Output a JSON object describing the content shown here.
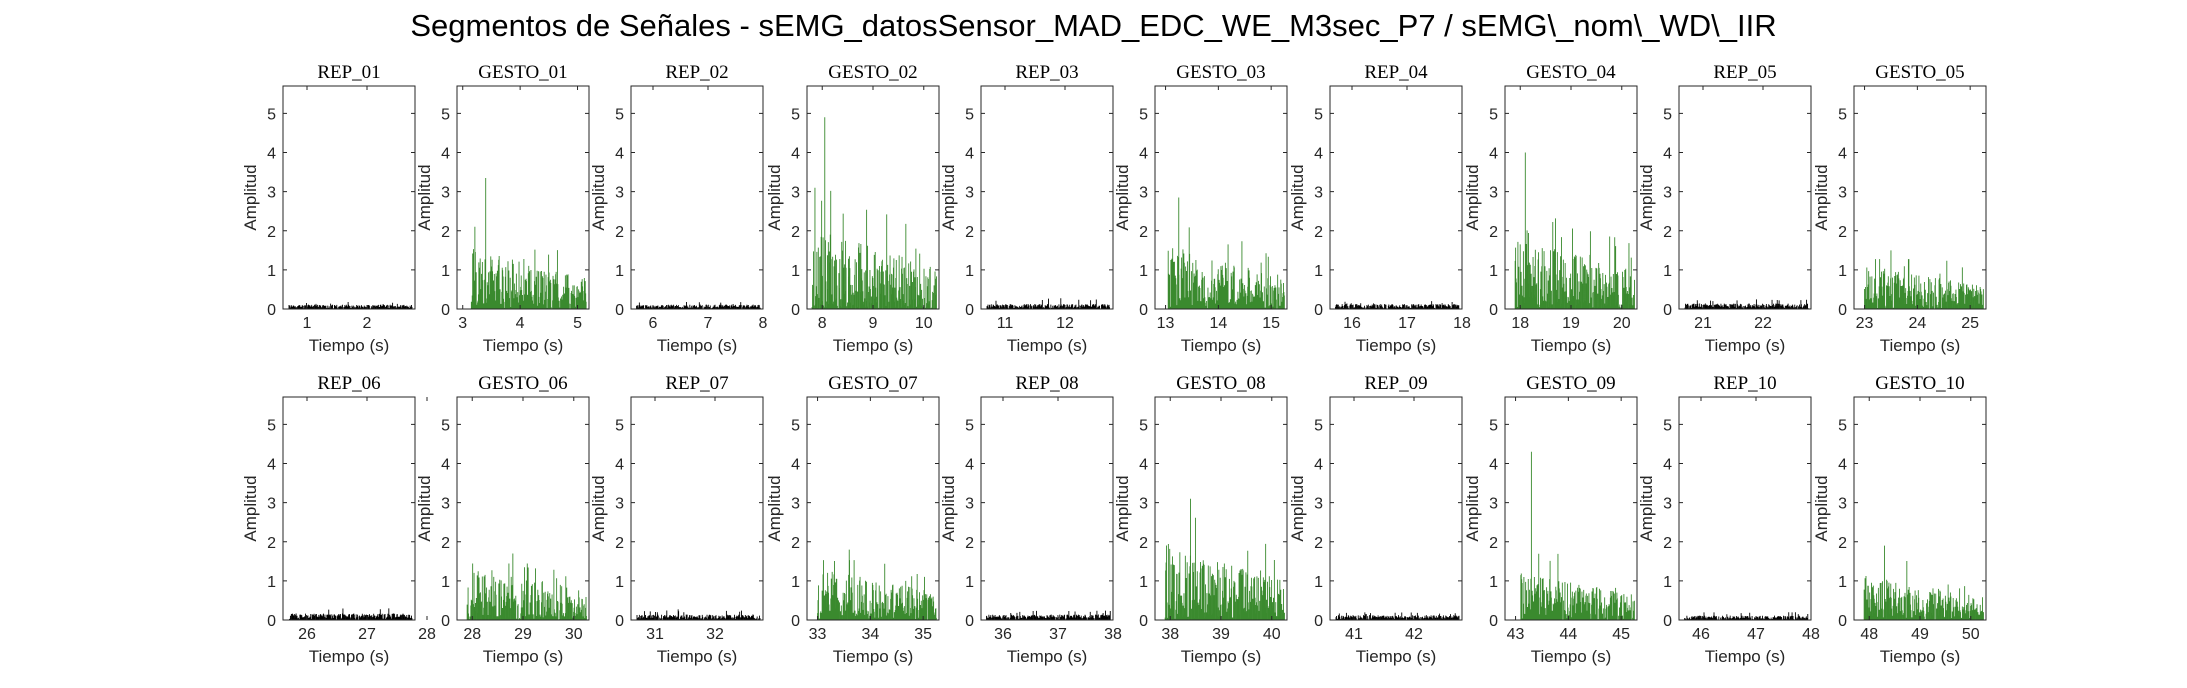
{
  "figure": {
    "title": "Segmentos de Señales - sEMG_datosSensor_MAD_EDC_WE_M3sec_P7 / sEMG\\_nom\\_WD\\_IIR"
  },
  "colors": {
    "rep": "#000000",
    "gesto": "#3a8a2e",
    "axis": "#262626"
  },
  "chart_data": [
    {
      "type": "area",
      "title": "REP_01",
      "xlabel": "Tiempo (s)",
      "ylabel": "Amplitud",
      "xlim": [
        0.6,
        2.8
      ],
      "ylim": [
        0,
        5.7
      ],
      "xticks": [
        1,
        2
      ],
      "yticks": [
        0,
        1,
        2,
        3,
        4,
        5
      ],
      "kind": "rep",
      "seed": 11,
      "level": 0.08,
      "peak": 0.18
    },
    {
      "type": "area",
      "title": "GESTO_01",
      "xlabel": "Tiempo (s)",
      "ylabel": "Amplitud",
      "xlim": [
        2.9,
        5.2
      ],
      "ylim": [
        0,
        5.7
      ],
      "xticks": [
        3,
        4,
        5
      ],
      "yticks": [
        0,
        1,
        2,
        3,
        4,
        5
      ],
      "kind": "gesto",
      "seed": 21,
      "onset": 3.15,
      "level": 0.75,
      "peak": 3.35,
      "peak_x": 3.4
    },
    {
      "type": "area",
      "title": "REP_02",
      "xlabel": "Tiempo (s)",
      "ylabel": "Amplitud",
      "xlim": [
        5.6,
        8.0
      ],
      "ylim": [
        0,
        5.7
      ],
      "xticks": [
        6,
        7,
        8
      ],
      "yticks": [
        0,
        1,
        2,
        3,
        4,
        5
      ],
      "kind": "rep",
      "seed": 12,
      "level": 0.08,
      "peak": 0.18
    },
    {
      "type": "area",
      "title": "GESTO_02",
      "xlabel": "Tiempo (s)",
      "ylabel": "Amplitud",
      "xlim": [
        7.7,
        10.3
      ],
      "ylim": [
        0,
        5.7
      ],
      "xticks": [
        8,
        9,
        10
      ],
      "yticks": [
        0,
        1,
        2,
        3,
        4,
        5
      ],
      "kind": "gesto",
      "seed": 22,
      "onset": 7.8,
      "level": 1.0,
      "peak": 4.9,
      "peak_x": 8.05
    },
    {
      "type": "area",
      "title": "REP_03",
      "xlabel": "Tiempo (s)",
      "ylabel": "Amplitud",
      "xlim": [
        10.6,
        12.8
      ],
      "ylim": [
        0,
        5.7
      ],
      "xticks": [
        11,
        12
      ],
      "yticks": [
        0,
        1,
        2,
        3,
        4,
        5
      ],
      "kind": "rep",
      "seed": 13,
      "level": 0.09,
      "peak": 0.3
    },
    {
      "type": "area",
      "title": "GESTO_03",
      "xlabel": "Tiempo (s)",
      "ylabel": "Amplitud",
      "xlim": [
        12.8,
        15.3
      ],
      "ylim": [
        0,
        5.7
      ],
      "xticks": [
        13,
        14,
        15
      ],
      "yticks": [
        0,
        1,
        2,
        3,
        4,
        5
      ],
      "kind": "gesto",
      "seed": 23,
      "onset": 13.05,
      "level": 0.8,
      "peak": 2.85,
      "peak_x": 13.25
    },
    {
      "type": "area",
      "title": "REP_04",
      "xlabel": "Tiempo (s)",
      "ylabel": "Amplitud",
      "xlim": [
        15.6,
        18.0
      ],
      "ylim": [
        0,
        5.7
      ],
      "xticks": [
        16,
        17,
        18
      ],
      "yticks": [
        0,
        1,
        2,
        3,
        4,
        5
      ],
      "kind": "rep",
      "seed": 14,
      "level": 0.09,
      "peak": 0.2
    },
    {
      "type": "area",
      "title": "GESTO_04",
      "xlabel": "Tiempo (s)",
      "ylabel": "Amplitud",
      "xlim": [
        17.7,
        20.3
      ],
      "ylim": [
        0,
        5.7
      ],
      "xticks": [
        18,
        19,
        20
      ],
      "yticks": [
        0,
        1,
        2,
        3,
        4,
        5
      ],
      "kind": "gesto",
      "seed": 24,
      "onset": 17.9,
      "level": 0.9,
      "peak": 4.0,
      "peak_x": 18.1
    },
    {
      "type": "area",
      "title": "REP_05",
      "xlabel": "Tiempo (s)",
      "ylabel": "Amplitud",
      "xlim": [
        20.6,
        22.8
      ],
      "ylim": [
        0,
        5.7
      ],
      "xticks": [
        21,
        22
      ],
      "yticks": [
        0,
        1,
        2,
        3,
        4,
        5
      ],
      "kind": "rep",
      "seed": 15,
      "level": 0.1,
      "peak": 0.25
    },
    {
      "type": "area",
      "title": "GESTO_05",
      "xlabel": "Tiempo (s)",
      "ylabel": "Amplitud",
      "xlim": [
        22.8,
        25.3
      ],
      "ylim": [
        0,
        5.7
      ],
      "xticks": [
        23,
        24,
        25
      ],
      "yticks": [
        0,
        1,
        2,
        3,
        4,
        5
      ],
      "kind": "gesto",
      "seed": 25,
      "onset": 23.0,
      "level": 0.55,
      "peak": 1.5,
      "peak_x": 23.5
    },
    {
      "type": "area",
      "title": "REP_06",
      "xlabel": "Tiempo (s)",
      "ylabel": "Amplitud",
      "xlim": [
        25.6,
        27.8
      ],
      "ylim": [
        0,
        5.7
      ],
      "xticks": [
        26,
        27,
        28
      ],
      "yticks": [
        0,
        1,
        2,
        3,
        4,
        5
      ],
      "kind": "rep",
      "seed": 16,
      "level": 0.12,
      "peak": 0.3
    },
    {
      "type": "area",
      "title": "GESTO_06",
      "xlabel": "Tiempo (s)",
      "ylabel": "Amplitud",
      "xlim": [
        27.7,
        30.3
      ],
      "ylim": [
        0,
        5.7
      ],
      "xticks": [
        28,
        29,
        30
      ],
      "yticks": [
        0,
        1,
        2,
        3,
        4,
        5
      ],
      "kind": "gesto",
      "seed": 26,
      "onset": 27.9,
      "level": 0.7,
      "peak": 1.7,
      "peak_x": 28.8
    },
    {
      "type": "area",
      "title": "REP_07",
      "xlabel": "Tiempo (s)",
      "ylabel": "Amplitud",
      "xlim": [
        30.6,
        32.8
      ],
      "ylim": [
        0,
        5.7
      ],
      "xticks": [
        31,
        32
      ],
      "yticks": [
        0,
        1,
        2,
        3,
        4,
        5
      ],
      "kind": "rep",
      "seed": 17,
      "level": 0.1,
      "peak": 0.28
    },
    {
      "type": "area",
      "title": "GESTO_07",
      "xlabel": "Tiempo (s)",
      "ylabel": "Amplitud",
      "xlim": [
        32.8,
        35.3
      ],
      "ylim": [
        0,
        5.7
      ],
      "xticks": [
        33,
        34,
        35
      ],
      "yticks": [
        0,
        1,
        2,
        3,
        4,
        5
      ],
      "kind": "gesto",
      "seed": 27,
      "onset": 33.0,
      "level": 0.65,
      "peak": 1.8,
      "peak_x": 33.6
    },
    {
      "type": "area",
      "title": "REP_08",
      "xlabel": "Tiempo (s)",
      "ylabel": "Amplitud",
      "xlim": [
        35.6,
        38.0
      ],
      "ylim": [
        0,
        5.7
      ],
      "xticks": [
        36,
        37,
        38
      ],
      "yticks": [
        0,
        1,
        2,
        3,
        4,
        5
      ],
      "kind": "rep",
      "seed": 18,
      "level": 0.1,
      "peak": 0.25
    },
    {
      "type": "area",
      "title": "GESTO_08",
      "xlabel": "Tiempo (s)",
      "ylabel": "Amplitud",
      "xlim": [
        37.7,
        40.3
      ],
      "ylim": [
        0,
        5.7
      ],
      "xticks": [
        38,
        39,
        40
      ],
      "yticks": [
        0,
        1,
        2,
        3,
        4,
        5
      ],
      "kind": "gesto",
      "seed": 28,
      "onset": 37.9,
      "level": 0.95,
      "peak": 3.1,
      "peak_x": 38.4
    },
    {
      "type": "area",
      "title": "REP_09",
      "xlabel": "Tiempo (s)",
      "ylabel": "Amplitud",
      "xlim": [
        40.6,
        42.8
      ],
      "ylim": [
        0,
        5.7
      ],
      "xticks": [
        41,
        42
      ],
      "yticks": [
        0,
        1,
        2,
        3,
        4,
        5
      ],
      "kind": "rep",
      "seed": 19,
      "level": 0.09,
      "peak": 0.2
    },
    {
      "type": "area",
      "title": "GESTO_09",
      "xlabel": "Tiempo (s)",
      "ylabel": "Amplitud",
      "xlim": [
        42.8,
        45.3
      ],
      "ylim": [
        0,
        5.7
      ],
      "xticks": [
        43,
        44,
        45
      ],
      "yticks": [
        0,
        1,
        2,
        3,
        4,
        5
      ],
      "kind": "gesto",
      "seed": 29,
      "onset": 43.1,
      "level": 0.6,
      "peak": 4.3,
      "peak_x": 43.3
    },
    {
      "type": "area",
      "title": "REP_10",
      "xlabel": "Tiempo (s)",
      "ylabel": "Amplitud",
      "xlim": [
        45.6,
        48.0
      ],
      "ylim": [
        0,
        5.7
      ],
      "xticks": [
        46,
        47,
        48
      ],
      "yticks": [
        0,
        1,
        2,
        3,
        4,
        5
      ],
      "kind": "rep",
      "seed": 20,
      "level": 0.08,
      "peak": 0.2
    },
    {
      "type": "area",
      "title": "GESTO_10",
      "xlabel": "Tiempo (s)",
      "ylabel": "Amplitud",
      "xlim": [
        47.7,
        50.3
      ],
      "ylim": [
        0,
        5.7
      ],
      "xticks": [
        48,
        49,
        50
      ],
      "yticks": [
        0,
        1,
        2,
        3,
        4,
        5
      ],
      "kind": "gesto",
      "seed": 30,
      "onset": 47.9,
      "level": 0.55,
      "peak": 1.9,
      "peak_x": 48.3
    }
  ]
}
